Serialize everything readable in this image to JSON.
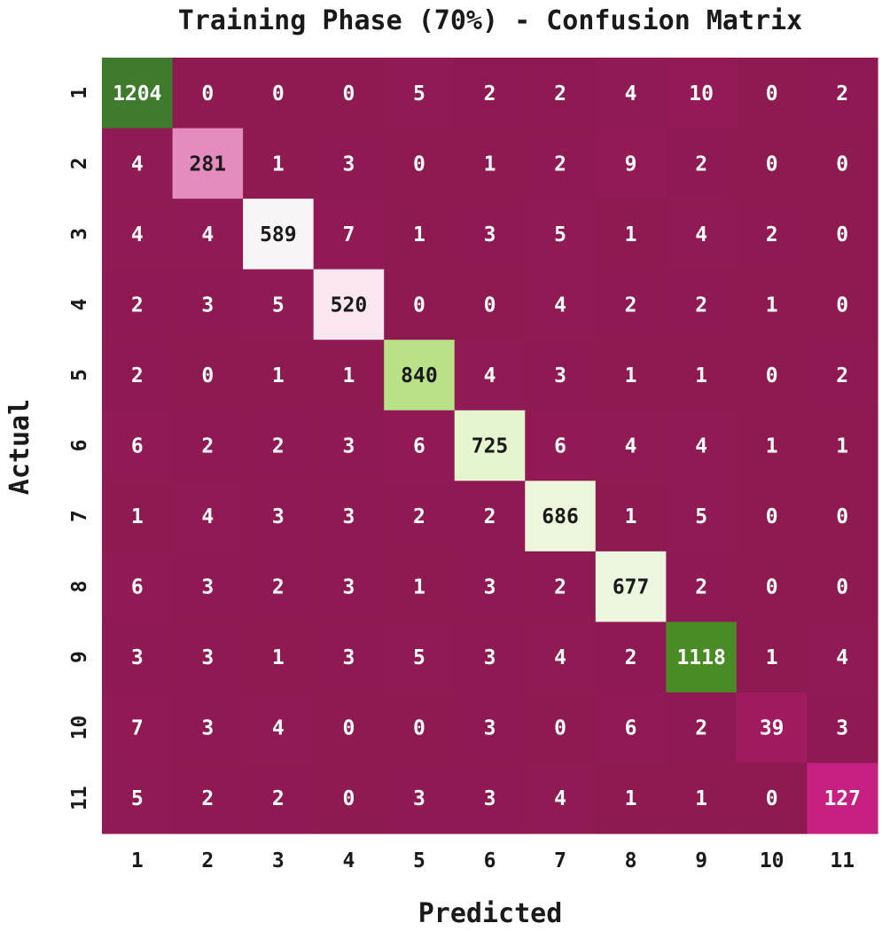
{
  "chart_data": {
    "type": "heatmap",
    "title": "Training Phase (70%) - Confusion Matrix",
    "xlabel": "Predicted",
    "ylabel": "Actual",
    "x_categories": [
      "1",
      "2",
      "3",
      "4",
      "5",
      "6",
      "7",
      "8",
      "9",
      "10",
      "11"
    ],
    "y_categories": [
      "1",
      "2",
      "3",
      "4",
      "5",
      "6",
      "7",
      "8",
      "9",
      "10",
      "11"
    ],
    "matrix": [
      [
        1204,
        0,
        0,
        0,
        5,
        2,
        2,
        4,
        10,
        0,
        2
      ],
      [
        4,
        281,
        1,
        3,
        0,
        1,
        2,
        9,
        2,
        0,
        0
      ],
      [
        4,
        4,
        589,
        7,
        1,
        3,
        5,
        1,
        4,
        2,
        0
      ],
      [
        2,
        3,
        5,
        520,
        0,
        0,
        4,
        2,
        2,
        1,
        0
      ],
      [
        2,
        0,
        1,
        1,
        840,
        4,
        3,
        1,
        1,
        0,
        2
      ],
      [
        6,
        2,
        2,
        3,
        6,
        725,
        6,
        4,
        4,
        1,
        1
      ],
      [
        1,
        4,
        3,
        3,
        2,
        2,
        686,
        1,
        5,
        0,
        0
      ],
      [
        6,
        3,
        2,
        3,
        1,
        3,
        2,
        677,
        2,
        0,
        0
      ],
      [
        3,
        3,
        1,
        3,
        5,
        3,
        4,
        2,
        1118,
        1,
        4
      ],
      [
        7,
        3,
        4,
        0,
        0,
        3,
        0,
        6,
        2,
        39,
        3
      ],
      [
        5,
        2,
        2,
        0,
        3,
        3,
        4,
        1,
        1,
        0,
        127
      ]
    ],
    "colormap": "PiYG",
    "colormap_stops": [
      "#8e1a52",
      "#c51b7d",
      "#de77ae",
      "#f1b6da",
      "#fde0ef",
      "#f7f7f7",
      "#e6f5d0",
      "#b8e186",
      "#7fbc41",
      "#4d9221",
      "#3e7b2c"
    ],
    "value_range": [
      0,
      1204
    ],
    "colorbar": false,
    "grid": false
  }
}
